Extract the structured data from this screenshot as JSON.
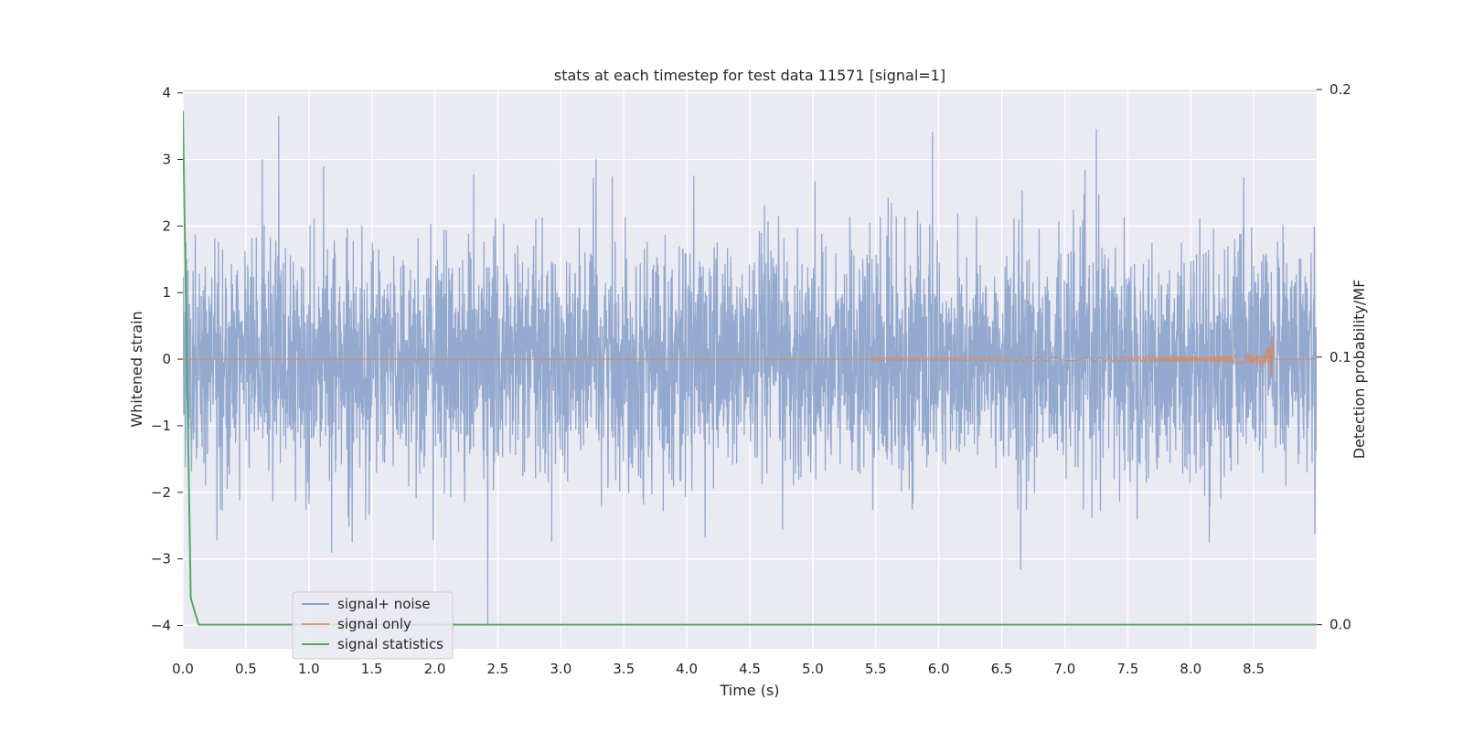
{
  "chart_data": {
    "type": "line",
    "title": "stats at each timestep for test data 11571 [signal=1]",
    "xlabel": "Time (s)",
    "ylabel": "Whitened strain",
    "y2label": "Detection probability/MF",
    "xlim": [
      0,
      9
    ],
    "ylim": [
      -4.35,
      4.05
    ],
    "y2lim": [
      -0.009,
      0.2
    ],
    "xticks": [
      0.0,
      0.5,
      1.0,
      1.5,
      2.0,
      2.5,
      3.0,
      3.5,
      4.0,
      4.5,
      5.0,
      5.5,
      6.0,
      6.5,
      7.0,
      7.5,
      8.0,
      8.5
    ],
    "xtick_labels": [
      "0.0",
      "0.5",
      "1.0",
      "1.5",
      "2.0",
      "2.5",
      "3.0",
      "3.5",
      "4.0",
      "4.5",
      "5.0",
      "5.5",
      "6.0",
      "6.5",
      "7.0",
      "7.5",
      "8.0",
      "8.5"
    ],
    "yticks": [
      -4,
      -3,
      -2,
      -1,
      0,
      1,
      2,
      3,
      4
    ],
    "ytick_labels": [
      "−4",
      "−3",
      "−2",
      "−1",
      "0",
      "1",
      "2",
      "3",
      "4"
    ],
    "y2ticks": [
      0.0,
      0.1,
      0.2
    ],
    "y2tick_labels": [
      "0.0",
      "0.1",
      "0.2"
    ],
    "grid": true,
    "legend_position": "lower-left",
    "series": [
      {
        "name": "signal+ noise",
        "color": "#4c72b0",
        "opacity": 0.55,
        "axis": "left",
        "description_values": {
          "duration_s": 9.0,
          "typical_std": 0.85,
          "notable_peaks": [
            [
              0.76,
              3.65
            ],
            [
              0.63,
              3.0
            ],
            [
              5.95,
              3.4
            ],
            [
              7.25,
              3.45
            ],
            [
              3.28,
              3.0
            ],
            [
              2.42,
              -4.0
            ],
            [
              6.65,
              -3.15
            ],
            [
              1.18,
              -2.9
            ]
          ]
        }
      },
      {
        "name": "signal only",
        "color": "#dd8452",
        "opacity": 0.75,
        "axis": "left",
        "description_values": {
          "chirp_start_s": 5.5,
          "merger_time_s": 8.65,
          "peak_amplitude": 0.45
        }
      },
      {
        "name": "signal statistics",
        "color": "#55a868",
        "axis": "right",
        "points": [
          [
            0.0,
            0.192
          ],
          [
            0.0625,
            0.01
          ],
          [
            0.125,
            0.0
          ],
          [
            9.0,
            0.0
          ]
        ]
      }
    ]
  }
}
